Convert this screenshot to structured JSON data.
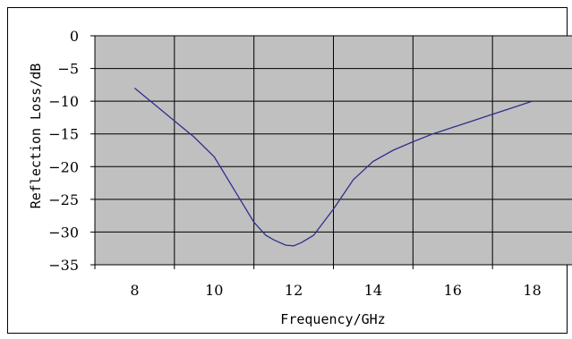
{
  "chart_data": {
    "type": "line",
    "title": "",
    "xlabel": "Frequency/GHz",
    "ylabel": "Reflection Loss/dB",
    "xlim": [
      7,
      19
    ],
    "ylim": [
      -35,
      0
    ],
    "x_ticks": [
      8,
      10,
      12,
      14,
      16,
      18
    ],
    "y_ticks": [
      0,
      -5,
      -10,
      -15,
      -20,
      -25,
      -30,
      -35
    ],
    "grid": true,
    "plot_background": "#c0c0c0",
    "series": [
      {
        "color": "#2f2f8f",
        "x": [
          8,
          8.5,
          9,
          9.5,
          10,
          10.5,
          11,
          11.3,
          11.5,
          11.8,
          12,
          12.2,
          12.5,
          13,
          13.5,
          14,
          14.5,
          15,
          15.5,
          16,
          16.5,
          17,
          17.5,
          18
        ],
        "y": [
          -8.0,
          -10.5,
          -13.0,
          -15.5,
          -18.5,
          -23.5,
          -28.5,
          -30.5,
          -31.2,
          -32.0,
          -32.1,
          -31.6,
          -30.5,
          -26.5,
          -22.0,
          -19.2,
          -17.5,
          -16.2,
          -15.0,
          -14.0,
          -13.0,
          -12.0,
          -11.0,
          -10.0
        ]
      }
    ]
  }
}
